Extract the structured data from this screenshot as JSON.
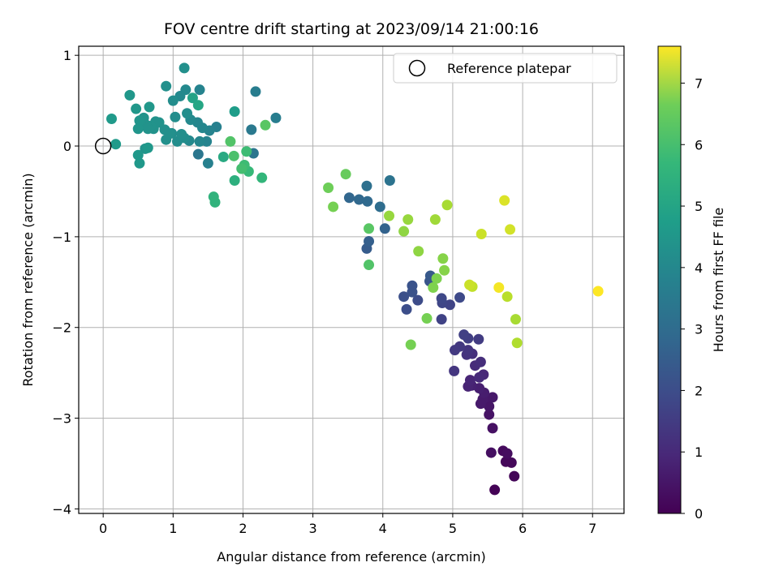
{
  "chart_data": {
    "type": "scatter",
    "title": "FOV centre drift starting at 2023/09/14 21:00:16",
    "xlabel": "Angular distance from reference (arcmin)",
    "ylabel": "Rotation from reference (arcmin)",
    "xlim": [
      -0.35,
      7.45
    ],
    "ylim": [
      -4.05,
      1.1
    ],
    "xticks": [
      0,
      1,
      2,
      3,
      4,
      5,
      6,
      7
    ],
    "xtick_labels": [
      "0",
      "1",
      "2",
      "3",
      "4",
      "5",
      "6",
      "7"
    ],
    "yticks": [
      1,
      0,
      -1,
      -2,
      -3,
      -4
    ],
    "ytick_labels": [
      "1",
      "0",
      "−1",
      "−2",
      "−3",
      "−4"
    ],
    "grid": true,
    "colormap": "viridis",
    "colorbar": {
      "label": "Hours from first FF file",
      "range": [
        0,
        7.6
      ],
      "ticks": [
        0,
        1,
        2,
        3,
        4,
        5,
        6,
        7
      ],
      "tick_labels": [
        "0",
        "1",
        "2",
        "3",
        "4",
        "5",
        "6",
        "7"
      ]
    },
    "legend": {
      "position": "upper-right",
      "entries": [
        {
          "label": "Reference platepar",
          "marker": "open-circle",
          "color": "#000000"
        }
      ]
    },
    "reference_point": {
      "x": 0,
      "y": 0
    },
    "points": [
      [
        5.6,
        -3.79,
        0.05
      ],
      [
        5.88,
        -3.64,
        0.1
      ],
      [
        5.76,
        -3.48,
        0.15
      ],
      [
        5.84,
        -3.49,
        0.15
      ],
      [
        5.72,
        -3.36,
        0.2
      ],
      [
        5.78,
        -3.39,
        0.25
      ],
      [
        5.55,
        -3.38,
        0.3
      ],
      [
        5.57,
        -3.11,
        0.35
      ],
      [
        5.52,
        -2.96,
        0.4
      ],
      [
        5.52,
        -2.87,
        0.45
      ],
      [
        5.57,
        -2.77,
        0.5
      ],
      [
        5.48,
        -2.77,
        0.5
      ],
      [
        5.43,
        -2.79,
        0.55
      ],
      [
        5.4,
        -2.84,
        0.55
      ],
      [
        5.45,
        -2.72,
        0.6
      ],
      [
        5.38,
        -2.67,
        0.65
      ],
      [
        5.27,
        -2.64,
        0.7
      ],
      [
        5.22,
        -2.65,
        0.75
      ],
      [
        5.25,
        -2.58,
        0.8
      ],
      [
        5.44,
        -2.52,
        0.85
      ],
      [
        5.38,
        -2.55,
        0.9
      ],
      [
        5.32,
        -2.42,
        0.95
      ],
      [
        5.4,
        -2.38,
        1.0
      ],
      [
        5.28,
        -2.29,
        1.05
      ],
      [
        5.2,
        -2.3,
        1.1
      ],
      [
        5.22,
        -2.25,
        1.15
      ],
      [
        5.02,
        -2.48,
        1.2
      ],
      [
        5.1,
        -2.21,
        1.25
      ],
      [
        5.03,
        -2.25,
        1.3
      ],
      [
        5.37,
        -2.13,
        1.35
      ],
      [
        5.22,
        -2.12,
        1.4
      ],
      [
        5.16,
        -2.08,
        1.45
      ],
      [
        4.84,
        -1.91,
        1.5
      ],
      [
        4.96,
        -1.75,
        1.55
      ],
      [
        4.85,
        -1.73,
        1.6
      ],
      [
        4.84,
        -1.68,
        1.65
      ],
      [
        5.1,
        -1.67,
        1.7
      ],
      [
        4.5,
        -1.7,
        1.75
      ],
      [
        4.34,
        -1.8,
        1.8
      ],
      [
        4.3,
        -1.66,
        1.85
      ],
      [
        4.42,
        -1.61,
        1.9
      ],
      [
        4.42,
        -1.54,
        1.95
      ],
      [
        4.67,
        -1.49,
        2.0
      ],
      [
        4.68,
        -1.43,
        2.1
      ],
      [
        3.77,
        -1.13,
        2.2
      ],
      [
        3.8,
        -1.05,
        2.3
      ],
      [
        4.03,
        -0.91,
        2.4
      ],
      [
        3.52,
        -0.57,
        2.5
      ],
      [
        3.66,
        -0.59,
        2.55
      ],
      [
        3.78,
        -0.61,
        2.6
      ],
      [
        3.96,
        -0.67,
        2.7
      ],
      [
        3.77,
        -0.44,
        2.8
      ],
      [
        4.1,
        -0.38,
        2.9
      ],
      [
        1.36,
        -0.09,
        3.0
      ],
      [
        2.15,
        -0.08,
        3.0
      ],
      [
        2.12,
        0.18,
        3.1
      ],
      [
        2.47,
        0.31,
        3.2
      ],
      [
        2.18,
        0.6,
        3.2
      ],
      [
        1.5,
        -0.19,
        3.3
      ],
      [
        1.62,
        0.21,
        3.3
      ],
      [
        1.48,
        0.05,
        3.4
      ],
      [
        1.52,
        0.17,
        3.4
      ],
      [
        1.38,
        0.62,
        3.4
      ],
      [
        1.38,
        0.05,
        3.5
      ],
      [
        1.42,
        0.2,
        3.5
      ],
      [
        1.35,
        0.26,
        3.5
      ],
      [
        1.23,
        0.06,
        3.6
      ],
      [
        1.25,
        0.29,
        3.6
      ],
      [
        1.18,
        0.62,
        3.6
      ],
      [
        1.1,
        0.55,
        3.6
      ],
      [
        1.16,
        0.09,
        3.7
      ],
      [
        1.06,
        0.05,
        3.7
      ],
      [
        1.03,
        0.32,
        3.7
      ],
      [
        1.0,
        0.5,
        3.7
      ],
      [
        0.98,
        0.14,
        3.7
      ],
      [
        1.2,
        0.36,
        3.75
      ],
      [
        1.12,
        0.13,
        3.75
      ],
      [
        0.9,
        0.66,
        3.8
      ],
      [
        0.9,
        0.07,
        3.8
      ],
      [
        0.95,
        0.14,
        3.8
      ],
      [
        0.88,
        0.18,
        3.8
      ],
      [
        1.16,
        0.86,
        3.8
      ],
      [
        0.8,
        0.26,
        3.85
      ],
      [
        0.72,
        0.19,
        3.85
      ],
      [
        0.75,
        0.27,
        3.85
      ],
      [
        0.68,
        0.22,
        3.9
      ],
      [
        0.62,
        0.23,
        3.9
      ],
      [
        0.64,
        0.19,
        3.9
      ],
      [
        0.6,
        -0.03,
        3.9
      ],
      [
        0.58,
        0.31,
        3.9
      ],
      [
        0.52,
        0.28,
        3.95
      ],
      [
        0.5,
        0.19,
        3.95
      ],
      [
        0.66,
        0.43,
        4.0
      ],
      [
        0.47,
        0.41,
        4.0
      ],
      [
        0.38,
        0.56,
        4.0
      ],
      [
        0.5,
        -0.1,
        4.05
      ],
      [
        0.52,
        -0.19,
        4.05
      ],
      [
        0.64,
        -0.02,
        4.05
      ],
      [
        0.18,
        0.02,
        4.1
      ],
      [
        0.12,
        0.3,
        4.1
      ],
      [
        1.88,
        0.38,
        4.2
      ],
      [
        1.28,
        0.53,
        4.4
      ],
      [
        1.36,
        0.45,
        4.5
      ],
      [
        1.72,
        -0.12,
        4.6
      ],
      [
        1.88,
        -0.38,
        4.8
      ],
      [
        1.58,
        -0.56,
        4.9
      ],
      [
        1.6,
        -0.62,
        4.9
      ],
      [
        2.27,
        -0.35,
        5.0
      ],
      [
        2.08,
        -0.28,
        5.1
      ],
      [
        2.02,
        -0.21,
        5.2
      ],
      [
        2.05,
        -0.06,
        5.2
      ],
      [
        1.98,
        -0.25,
        5.3
      ],
      [
        1.87,
        -0.11,
        5.4
      ],
      [
        1.82,
        0.05,
        5.5
      ],
      [
        2.32,
        0.23,
        5.6
      ],
      [
        3.8,
        -1.31,
        5.5
      ],
      [
        3.8,
        -0.91,
        5.6
      ],
      [
        3.47,
        -0.31,
        5.8
      ],
      [
        3.22,
        -0.46,
        5.9
      ],
      [
        3.29,
        -0.67,
        6.0
      ],
      [
        4.4,
        -2.19,
        6.0
      ],
      [
        4.63,
        -1.9,
        6.0
      ],
      [
        4.72,
        -1.56,
        6.1
      ],
      [
        4.77,
        -1.46,
        6.1
      ],
      [
        4.88,
        -1.37,
        6.2
      ],
      [
        4.86,
        -1.24,
        6.2
      ],
      [
        4.51,
        -1.16,
        6.3
      ],
      [
        4.3,
        -0.94,
        6.3
      ],
      [
        4.09,
        -0.77,
        6.4
      ],
      [
        4.36,
        -0.81,
        6.4
      ],
      [
        4.75,
        -0.81,
        6.5
      ],
      [
        4.92,
        -0.65,
        6.6
      ],
      [
        5.9,
        -1.91,
        6.6
      ],
      [
        5.92,
        -2.17,
        6.7
      ],
      [
        5.78,
        -1.66,
        6.8
      ],
      [
        5.28,
        -1.55,
        6.9
      ],
      [
        5.24,
        -1.53,
        7.0
      ],
      [
        5.41,
        -0.97,
        7.0
      ],
      [
        5.82,
        -0.92,
        7.1
      ],
      [
        5.74,
        -0.6,
        7.2
      ],
      [
        5.66,
        -1.56,
        7.5
      ],
      [
        7.08,
        -1.6,
        7.6
      ]
    ]
  }
}
